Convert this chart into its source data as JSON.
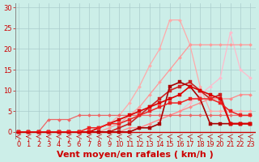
{
  "title": "",
  "xlabel": "Vent moyen/en rafales ( km/h )",
  "background_color": "#cceee8",
  "grid_color": "#aacccc",
  "x_ticks": [
    0,
    1,
    2,
    3,
    4,
    5,
    6,
    7,
    8,
    9,
    10,
    11,
    12,
    13,
    14,
    15,
    16,
    17,
    18,
    19,
    20,
    21,
    22,
    23
  ],
  "y_ticks": [
    0,
    5,
    10,
    15,
    20,
    25,
    30
  ],
  "ylim": [
    -1.5,
    31
  ],
  "xlim": [
    -0.3,
    23.5
  ],
  "lines": [
    {
      "x": [
        0,
        1,
        2,
        3,
        4,
        5,
        6,
        7,
        8,
        9,
        10,
        11,
        12,
        13,
        14,
        15,
        16,
        17,
        18,
        19,
        20,
        21,
        22,
        23
      ],
      "y": [
        0,
        0,
        0,
        0,
        0,
        0,
        0,
        0,
        0,
        0,
        0,
        0,
        1,
        2,
        3,
        4,
        5,
        7,
        9,
        11,
        13,
        24,
        15,
        13
      ],
      "color": "#ffbbcc",
      "linewidth": 0.9,
      "marker": "D",
      "markersize": 2.0
    },
    {
      "x": [
        0,
        1,
        2,
        3,
        4,
        5,
        6,
        7,
        8,
        9,
        10,
        11,
        12,
        13,
        14,
        15,
        16,
        17,
        18,
        19,
        20,
        21,
        22,
        23
      ],
      "y": [
        0,
        0,
        0,
        0,
        0,
        0,
        0,
        0,
        1,
        2,
        4,
        7,
        11,
        16,
        20,
        27,
        27,
        21,
        11,
        5,
        5,
        5,
        5,
        5
      ],
      "color": "#ffaaaa",
      "linewidth": 0.9,
      "marker": "D",
      "markersize": 2.0
    },
    {
      "x": [
        0,
        1,
        2,
        3,
        4,
        5,
        6,
        7,
        8,
        9,
        10,
        11,
        12,
        13,
        14,
        15,
        16,
        17,
        18,
        19,
        20,
        21,
        22,
        23
      ],
      "y": [
        0,
        0,
        0,
        0,
        0,
        0,
        0,
        0,
        0,
        1,
        2,
        4,
        6,
        9,
        12,
        15,
        18,
        21,
        21,
        21,
        21,
        21,
        21,
        21
      ],
      "color": "#ff9999",
      "linewidth": 0.9,
      "marker": "D",
      "markersize": 2.0
    },
    {
      "x": [
        0,
        1,
        2,
        3,
        4,
        5,
        6,
        7,
        8,
        9,
        10,
        11,
        12,
        13,
        14,
        15,
        16,
        17,
        18,
        19,
        20,
        21,
        22,
        23
      ],
      "y": [
        0,
        0,
        0,
        0,
        0,
        0,
        0,
        0,
        0,
        0,
        0,
        1,
        1,
        2,
        3,
        4,
        5,
        6,
        7,
        8,
        8,
        8,
        9,
        9
      ],
      "color": "#ff8888",
      "linewidth": 0.9,
      "marker": "D",
      "markersize": 2.0
    },
    {
      "x": [
        0,
        1,
        2,
        3,
        4,
        5,
        6,
        7,
        8,
        9,
        10,
        11,
        12,
        13,
        14,
        15,
        16,
        17,
        18,
        19,
        20,
        21,
        22,
        23
      ],
      "y": [
        0,
        0,
        0,
        3,
        3,
        3,
        4,
        4,
        4,
        4,
        4,
        4,
        4,
        4,
        4,
        4,
        4,
        4,
        4,
        4,
        4,
        4,
        4,
        4
      ],
      "color": "#ee6666",
      "linewidth": 0.9,
      "marker": "D",
      "markersize": 2.0
    },
    {
      "x": [
        0,
        1,
        2,
        3,
        4,
        5,
        6,
        7,
        8,
        9,
        10,
        11,
        12,
        13,
        14,
        15,
        16,
        17,
        18,
        19,
        20,
        21,
        22,
        23
      ],
      "y": [
        0,
        0,
        0,
        0,
        0,
        0,
        0,
        0,
        0,
        0,
        1,
        2,
        4,
        6,
        8,
        10,
        11,
        12,
        10,
        8,
        9,
        2,
        2,
        2
      ],
      "color": "#cc2222",
      "linewidth": 1.2,
      "marker": "s",
      "markersize": 2.5
    },
    {
      "x": [
        0,
        1,
        2,
        3,
        4,
        5,
        6,
        7,
        8,
        9,
        10,
        11,
        12,
        13,
        14,
        15,
        16,
        17,
        18,
        19,
        20,
        21,
        22,
        23
      ],
      "y": [
        0,
        0,
        0,
        0,
        0,
        0,
        0,
        0,
        0,
        0,
        0,
        0,
        1,
        1,
        2,
        11,
        12,
        11,
        8,
        2,
        2,
        2,
        2,
        2
      ],
      "color": "#aa0000",
      "linewidth": 1.2,
      "marker": "s",
      "markersize": 2.5
    },
    {
      "x": [
        0,
        1,
        2,
        3,
        4,
        5,
        6,
        7,
        8,
        9,
        10,
        11,
        12,
        13,
        14,
        15,
        16,
        17,
        18,
        19,
        20,
        21,
        22,
        23
      ],
      "y": [
        0,
        0,
        0,
        0,
        0,
        0,
        0,
        0,
        1,
        2,
        3,
        4,
        5,
        6,
        7,
        8,
        9,
        11,
        10,
        9,
        8,
        2,
        2,
        2
      ],
      "color": "#dd0000",
      "linewidth": 1.2,
      "marker": "s",
      "markersize": 2.5
    },
    {
      "x": [
        0,
        1,
        2,
        3,
        4,
        5,
        6,
        7,
        8,
        9,
        10,
        11,
        12,
        13,
        14,
        15,
        16,
        17,
        18,
        19,
        20,
        21,
        22,
        23
      ],
      "y": [
        0,
        0,
        0,
        0,
        0,
        0,
        0,
        1,
        1,
        2,
        2,
        3,
        4,
        5,
        6,
        7,
        7,
        8,
        8,
        8,
        7,
        5,
        4,
        4
      ],
      "color": "#ee2222",
      "linewidth": 1.1,
      "marker": "s",
      "markersize": 2.5
    }
  ],
  "xlabel_color": "#cc0000",
  "xlabel_fontsize": 8,
  "tick_fontsize": 6,
  "tick_color": "#cc0000"
}
